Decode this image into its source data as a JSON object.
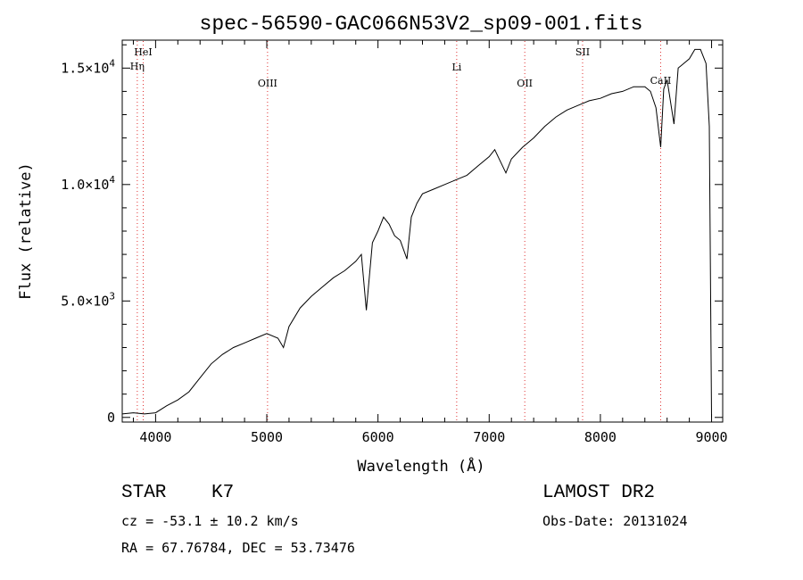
{
  "chart_data": {
    "type": "line",
    "title": "spec-56590-GAC066N53V2_sp09-001.fits",
    "xlabel": "Wavelength (Å)",
    "ylabel": "Flux (relative)",
    "xlim": [
      3700,
      9100
    ],
    "ylim": [
      -200,
      16200
    ],
    "x_ticks": [
      4000,
      5000,
      6000,
      7000,
      8000,
      9000
    ],
    "x_tick_labels": [
      "4000",
      "5000",
      "6000",
      "7000",
      "8000",
      "9000"
    ],
    "y_ticks": [
      0,
      5000,
      10000,
      15000
    ],
    "y_tick_labels": [
      {
        "mantissa": "0",
        "exp": ""
      },
      {
        "mantissa": "5.0×10",
        "exp": "3"
      },
      {
        "mantissa": "1.0×10",
        "exp": "4"
      },
      {
        "mantissa": "1.5×10",
        "exp": "4"
      }
    ],
    "grid": false,
    "series": [
      {
        "x": [
          3700,
          3800,
          3900,
          4000,
          4100,
          4200,
          4300,
          4400,
          4500,
          4600,
          4700,
          4800,
          4900,
          5000,
          5100,
          5150,
          5200,
          5300,
          5400,
          5500,
          5600,
          5700,
          5800,
          5850,
          5895,
          5950,
          6000,
          6050,
          6100,
          6150,
          6200,
          6260,
          6300,
          6350,
          6400,
          6500,
          6600,
          6700,
          6800,
          6900,
          7000,
          7050,
          7100,
          7150,
          7200,
          7300,
          7400,
          7500,
          7600,
          7700,
          7800,
          7900,
          8000,
          8100,
          8200,
          8300,
          8400,
          8450,
          8500,
          8542,
          8570,
          8600,
          8662,
          8700,
          8800,
          8850,
          8900,
          8950,
          8980,
          9000
        ],
        "y": [
          150,
          200,
          150,
          200,
          500,
          750,
          1100,
          1700,
          2300,
          2700,
          3000,
          3200,
          3400,
          3600,
          3400,
          3000,
          3900,
          4700,
          5200,
          5600,
          6000,
          6300,
          6700,
          7000,
          4600,
          7500,
          8000,
          8600,
          8300,
          7800,
          7600,
          6800,
          8600,
          9200,
          9600,
          9800,
          10000,
          10200,
          10400,
          10800,
          11200,
          11500,
          11000,
          10500,
          11100,
          11600,
          12000,
          12500,
          12900,
          13200,
          13400,
          13600,
          13700,
          13900,
          14000,
          14200,
          14200,
          14000,
          13300,
          11600,
          14100,
          14500,
          12600,
          15000,
          15400,
          15800,
          15800,
          15200,
          12500,
          0
        ]
      }
    ],
    "lines": [
      {
        "label": "HeI",
        "wavelength": 3888.6
      },
      {
        "label": "Hη",
        "wavelength": 3835.4
      },
      {
        "label": "OIII",
        "wavelength": 5006.8
      },
      {
        "label": "Li",
        "wavelength": 6707.8
      },
      {
        "label": "OII",
        "wavelength": 7320
      },
      {
        "label": "SII",
        "wavelength": 7840
      },
      {
        "label": "CaII",
        "wavelength": 8542.1
      }
    ]
  },
  "info": {
    "object_class": "STAR",
    "subclass": "K7",
    "survey": "LAMOST DR2",
    "cz_text": "cz = -53.1 ± 10.2 km/s",
    "obs_date_text": "Obs-Date: 20131024",
    "coords_text": "RA =  67.76784, DEC =  53.73476"
  }
}
